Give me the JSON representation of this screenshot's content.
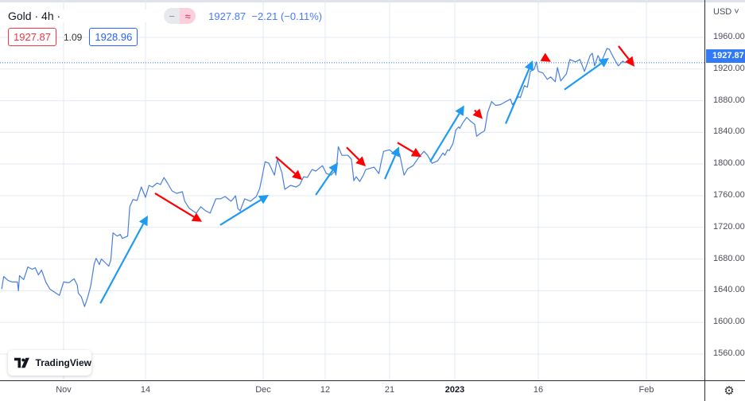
{
  "header": {
    "symbol": "Gold",
    "sep1": "·",
    "interval": "4h",
    "sep2": "·",
    "buttons": {
      "minus": "−",
      "approx": "≈"
    },
    "last": "1927.87",
    "change": "−2.21",
    "change_pct": "(−0.11%)"
  },
  "spread": {
    "sell": "1927.87",
    "value": "1.09",
    "buy": "1928.96"
  },
  "axis": {
    "currency": "USD ˅",
    "last_price_label": "1927.87",
    "settings_icon": "gear-icon"
  },
  "logo": {
    "text": "TradingView",
    "icon": "tradingview-logo-icon"
  },
  "colors": {
    "line": "#4a7fe0",
    "up_arrow": "#1e9bf0",
    "down_arrow": "#ff0000",
    "last_price": "#3179f5",
    "grid": "#e3eaf3"
  },
  "chart_data": {
    "type": "line",
    "ylim": [
      1526.8,
      2007.2
    ],
    "grid": true,
    "yticks": [
      "1960.00",
      "1920.00",
      "1880.00",
      "1840.00",
      "1800.00",
      "1760.00",
      "1720.00",
      "1680.00",
      "1640.00",
      "1600.00",
      "1560.00"
    ],
    "xticks": [
      {
        "label": "Nov",
        "date": "2022-11-01 00:00"
      },
      {
        "label": "14",
        "date": "2022-11-14 00:00"
      },
      {
        "label": "Dec",
        "date": "2022-12-01 00:00"
      },
      {
        "label": "12",
        "date": "2022-12-12 00:00"
      },
      {
        "label": "21",
        "date": "2022-12-21 00:00"
      },
      {
        "label": "2023",
        "date": "2023-01-02 00:00"
      },
      {
        "label": "16",
        "date": "2023-01-16 00:00"
      },
      {
        "label": "Feb",
        "date": "2023-02-01 00:00"
      }
    ],
    "last_price": 1927.87,
    "series": [
      {
        "values": [
          [
            "2022-10-22 04:00",
            1642
          ],
          [
            "2022-10-22 12:00",
            1658
          ],
          [
            "2022-10-23 04:00",
            1653
          ],
          [
            "2022-10-23 20:00",
            1651
          ],
          [
            "2022-10-24 16:00",
            1651
          ],
          [
            "2022-10-24 20:00",
            1640
          ],
          [
            "2022-10-25 00:00",
            1659
          ],
          [
            "2022-10-25 16:00",
            1654
          ],
          [
            "2022-10-26 08:00",
            1670
          ],
          [
            "2022-10-27 00:00",
            1667
          ],
          [
            "2022-10-27 12:00",
            1669
          ],
          [
            "2022-10-28 00:00",
            1660
          ],
          [
            "2022-10-28 12:00",
            1666
          ],
          [
            "2022-10-29 04:00",
            1651
          ],
          [
            "2022-10-29 20:00",
            1642
          ],
          [
            "2022-10-31 08:00",
            1634
          ],
          [
            "2022-11-01 00:00",
            1651
          ],
          [
            "2022-11-01 20:00",
            1650
          ],
          [
            "2022-11-02 16:00",
            1655
          ],
          [
            "2022-11-03 04:00",
            1647
          ],
          [
            "2022-11-03 08:00",
            1637
          ],
          [
            "2022-11-03 20:00",
            1632
          ],
          [
            "2022-11-04 08:00",
            1620
          ],
          [
            "2022-11-04 20:00",
            1632
          ],
          [
            "2022-11-05 08:00",
            1647
          ],
          [
            "2022-11-05 20:00",
            1673
          ],
          [
            "2022-11-06 04:00",
            1681
          ],
          [
            "2022-11-06 16:00",
            1673
          ],
          [
            "2022-11-07 00:00",
            1680
          ],
          [
            "2022-11-08 04:00",
            1671
          ],
          [
            "2022-11-08 12:00",
            1679
          ],
          [
            "2022-11-08 20:00",
            1713
          ],
          [
            "2022-11-09 12:00",
            1709
          ],
          [
            "2022-11-10 00:00",
            1711
          ],
          [
            "2022-11-10 08:00",
            1706
          ],
          [
            "2022-11-11 04:00",
            1709
          ],
          [
            "2022-11-11 12:00",
            1746
          ],
          [
            "2022-11-12 00:00",
            1755
          ],
          [
            "2022-11-12 16:00",
            1754
          ],
          [
            "2022-11-13 08:00",
            1771
          ],
          [
            "2022-11-14 00:00",
            1758
          ],
          [
            "2022-11-14 12:00",
            1773
          ],
          [
            "2022-11-15 00:00",
            1771
          ],
          [
            "2022-11-15 16:00",
            1776
          ],
          [
            "2022-11-16 04:00",
            1774
          ],
          [
            "2022-11-16 16:00",
            1783
          ],
          [
            "2022-11-17 04:00",
            1776
          ],
          [
            "2022-11-17 20:00",
            1766
          ],
          [
            "2022-11-18 12:00",
            1763
          ],
          [
            "2022-11-19 08:00",
            1765
          ],
          [
            "2022-11-19 16:00",
            1753
          ],
          [
            "2022-11-20 08:00",
            1744
          ],
          [
            "2022-11-21 08:00",
            1738
          ],
          [
            "2022-11-22 00:00",
            1746
          ],
          [
            "2022-11-22 16:00",
            1741
          ],
          [
            "2022-11-23 08:00",
            1738
          ],
          [
            "2022-11-24 04:00",
            1756
          ],
          [
            "2022-11-24 20:00",
            1756
          ],
          [
            "2022-11-25 12:00",
            1759
          ],
          [
            "2022-11-26 08:00",
            1753
          ],
          [
            "2022-11-26 16:00",
            1756
          ],
          [
            "2022-11-27 00:00",
            1760
          ],
          [
            "2022-11-27 08:00",
            1744
          ],
          [
            "2022-11-27 16:00",
            1741
          ],
          [
            "2022-11-28 08:00",
            1756
          ],
          [
            "2022-11-29 04:00",
            1753
          ],
          [
            "2022-11-30 00:00",
            1759
          ],
          [
            "2022-11-30 12:00",
            1769
          ],
          [
            "2022-11-30 20:00",
            1783
          ],
          [
            "2022-12-01 08:00",
            1803
          ],
          [
            "2022-12-02 00:00",
            1801
          ],
          [
            "2022-12-03 00:00",
            1786
          ],
          [
            "2022-12-03 12:00",
            1806
          ],
          [
            "2022-12-04 08:00",
            1789
          ],
          [
            "2022-12-04 20:00",
            1768
          ],
          [
            "2022-12-05 20:00",
            1773
          ],
          [
            "2022-12-06 20:00",
            1771
          ],
          [
            "2022-12-07 12:00",
            1774
          ],
          [
            "2022-12-08 04:00",
            1784
          ],
          [
            "2022-12-08 20:00",
            1783
          ],
          [
            "2022-12-09 16:00",
            1793
          ],
          [
            "2022-12-10 08:00",
            1791
          ],
          [
            "2022-12-11 12:00",
            1798
          ],
          [
            "2022-12-12 04:00",
            1788
          ],
          [
            "2022-12-12 20:00",
            1786
          ],
          [
            "2022-12-13 08:00",
            1791
          ],
          [
            "2022-12-13 12:00",
            1786
          ],
          [
            "2022-12-13 20:00",
            1822
          ],
          [
            "2022-12-14 08:00",
            1811
          ],
          [
            "2022-12-15 04:00",
            1811
          ],
          [
            "2022-12-15 16:00",
            1806
          ],
          [
            "2022-12-16 00:00",
            1779
          ],
          [
            "2022-12-16 08:00",
            1784
          ],
          [
            "2022-12-16 20:00",
            1778
          ],
          [
            "2022-12-17 08:00",
            1786
          ],
          [
            "2022-12-17 16:00",
            1793
          ],
          [
            "2022-12-18 20:00",
            1796
          ],
          [
            "2022-12-19 12:00",
            1788
          ],
          [
            "2022-12-19 20:00",
            1803
          ],
          [
            "2022-12-20 04:00",
            1816
          ],
          [
            "2022-12-21 00:00",
            1818
          ],
          [
            "2022-12-21 16:00",
            1814
          ],
          [
            "2022-12-22 20:00",
            1813
          ],
          [
            "2022-12-23 16:00",
            1786
          ],
          [
            "2022-12-24 08:00",
            1794
          ],
          [
            "2022-12-25 08:00",
            1798
          ],
          [
            "2022-12-26 08:00",
            1808
          ],
          [
            "2022-12-27 08:00",
            1816
          ],
          [
            "2022-12-28 00:00",
            1811
          ],
          [
            "2022-12-28 20:00",
            1801
          ],
          [
            "2022-12-29 20:00",
            1804
          ],
          [
            "2022-12-30 20:00",
            1814
          ],
          [
            "2022-12-31 04:00",
            1811
          ],
          [
            "2022-12-31 16:00",
            1818
          ],
          [
            "2023-01-01 00:00",
            1817
          ],
          [
            "2023-01-01 16:00",
            1826
          ],
          [
            "2023-01-02 04:00",
            1843
          ],
          [
            "2023-01-02 16:00",
            1847
          ],
          [
            "2023-01-02 20:00",
            1845
          ],
          [
            "2023-01-03 08:00",
            1852
          ],
          [
            "2023-01-04 00:00",
            1859
          ],
          [
            "2023-01-04 16:00",
            1854
          ],
          [
            "2023-01-05 08:00",
            1850
          ],
          [
            "2023-01-05 16:00",
            1835
          ],
          [
            "2023-01-06 08:00",
            1839
          ],
          [
            "2023-01-07 00:00",
            1842
          ],
          [
            "2023-01-07 12:00",
            1865
          ],
          [
            "2023-01-08 04:00",
            1879
          ],
          [
            "2023-01-08 20:00",
            1874
          ],
          [
            "2023-01-09 16:00",
            1875
          ],
          [
            "2023-01-10 08:00",
            1878
          ],
          [
            "2023-01-11 08:00",
            1882
          ],
          [
            "2023-01-11 16:00",
            1875
          ],
          [
            "2023-01-12 16:00",
            1885
          ],
          [
            "2023-01-13 00:00",
            1884
          ],
          [
            "2023-01-13 16:00",
            1899
          ],
          [
            "2023-01-14 04:00",
            1897
          ],
          [
            "2023-01-14 16:00",
            1917
          ],
          [
            "2023-01-15 08:00",
            1920
          ],
          [
            "2023-01-15 16:00",
            1929
          ],
          [
            "2023-01-16 00:00",
            1917
          ],
          [
            "2023-01-16 16:00",
            1915
          ],
          [
            "2023-01-17 08:00",
            1907
          ],
          [
            "2023-01-17 20:00",
            1910
          ],
          [
            "2023-01-18 12:00",
            1904
          ],
          [
            "2023-01-18 20:00",
            1922
          ],
          [
            "2023-01-19 08:00",
            1905
          ],
          [
            "2023-01-20 04:00",
            1914
          ],
          [
            "2023-01-20 16:00",
            1932
          ],
          [
            "2023-01-21 12:00",
            1929
          ],
          [
            "2023-01-22 04:00",
            1932
          ],
          [
            "2023-01-22 20:00",
            1917
          ],
          [
            "2023-01-23 16:00",
            1937
          ],
          [
            "2023-01-24 00:00",
            1940
          ],
          [
            "2023-01-24 08:00",
            1924
          ],
          [
            "2023-01-24 20:00",
            1937
          ],
          [
            "2023-01-25 08:00",
            1929
          ],
          [
            "2023-01-26 04:00",
            1946
          ],
          [
            "2023-01-26 12:00",
            1945
          ],
          [
            "2023-01-27 04:00",
            1934
          ],
          [
            "2023-01-27 20:00",
            1924
          ],
          [
            "2023-01-28 12:00",
            1930
          ],
          [
            "2023-01-28 20:00",
            1927.87
          ]
        ]
      }
    ],
    "annotations": [
      {
        "type": "arrow",
        "direction": "up",
        "from": [
          "2022-11-06 20:00",
          1624
        ],
        "to": [
          "2022-11-14 08:00",
          1735
        ]
      },
      {
        "type": "arrow",
        "direction": "down",
        "from": [
          "2022-11-15 09:00",
          1763
        ],
        "to": [
          "2022-11-22 04:00",
          1727
        ]
      },
      {
        "type": "arrow",
        "direction": "up",
        "from": [
          "2022-11-24 19:00",
          1723
        ],
        "to": [
          "2022-12-02 00:00",
          1761
        ]
      },
      {
        "type": "arrow",
        "direction": "down",
        "from": [
          "2022-12-03 06:00",
          1809
        ],
        "to": [
          "2022-12-07 22:00",
          1780
        ]
      },
      {
        "type": "arrow",
        "direction": "up",
        "from": [
          "2022-12-10 08:00",
          1761
        ],
        "to": [
          "2022-12-13 19:00",
          1802
        ]
      },
      {
        "type": "arrow",
        "direction": "down",
        "from": [
          "2022-12-15 00:00",
          1821
        ],
        "to": [
          "2022-12-17 16:00",
          1797
        ]
      },
      {
        "type": "arrow",
        "direction": "up",
        "from": [
          "2022-12-20 08:00",
          1781
        ],
        "to": [
          "2022-12-22 18:00",
          1822
        ]
      },
      {
        "type": "arrow",
        "direction": "down",
        "from": [
          "2022-12-22 11:00",
          1827
        ],
        "to": [
          "2022-12-26 21:00",
          1809
        ]
      },
      {
        "type": "arrow",
        "direction": "up",
        "from": [
          "2022-12-28 11:00",
          1803
        ],
        "to": [
          "2023-01-03 14:00",
          1874
        ]
      },
      {
        "type": "arrow",
        "direction": "down",
        "from": [
          "2023-01-05 08:00",
          1868
        ],
        "to": [
          "2023-01-06 16:00",
          1857
        ]
      },
      {
        "type": "arrow",
        "direction": "up",
        "from": [
          "2023-01-10 13:00",
          1851
        ],
        "to": [
          "2023-01-15 02:00",
          1931
        ]
      },
      {
        "type": "arrow",
        "direction": "down",
        "from": [
          "2023-01-16 17:00",
          1935
        ],
        "to": [
          "2023-01-17 21:00",
          1929
        ]
      },
      {
        "type": "arrow",
        "direction": "up",
        "from": [
          "2023-01-19 21:00",
          1894
        ],
        "to": [
          "2023-01-26 11:00",
          1934
        ]
      },
      {
        "type": "arrow",
        "direction": "down",
        "from": [
          "2023-01-27 21:00",
          1949
        ],
        "to": [
          "2023-01-30 06:00",
          1923
        ]
      }
    ]
  }
}
